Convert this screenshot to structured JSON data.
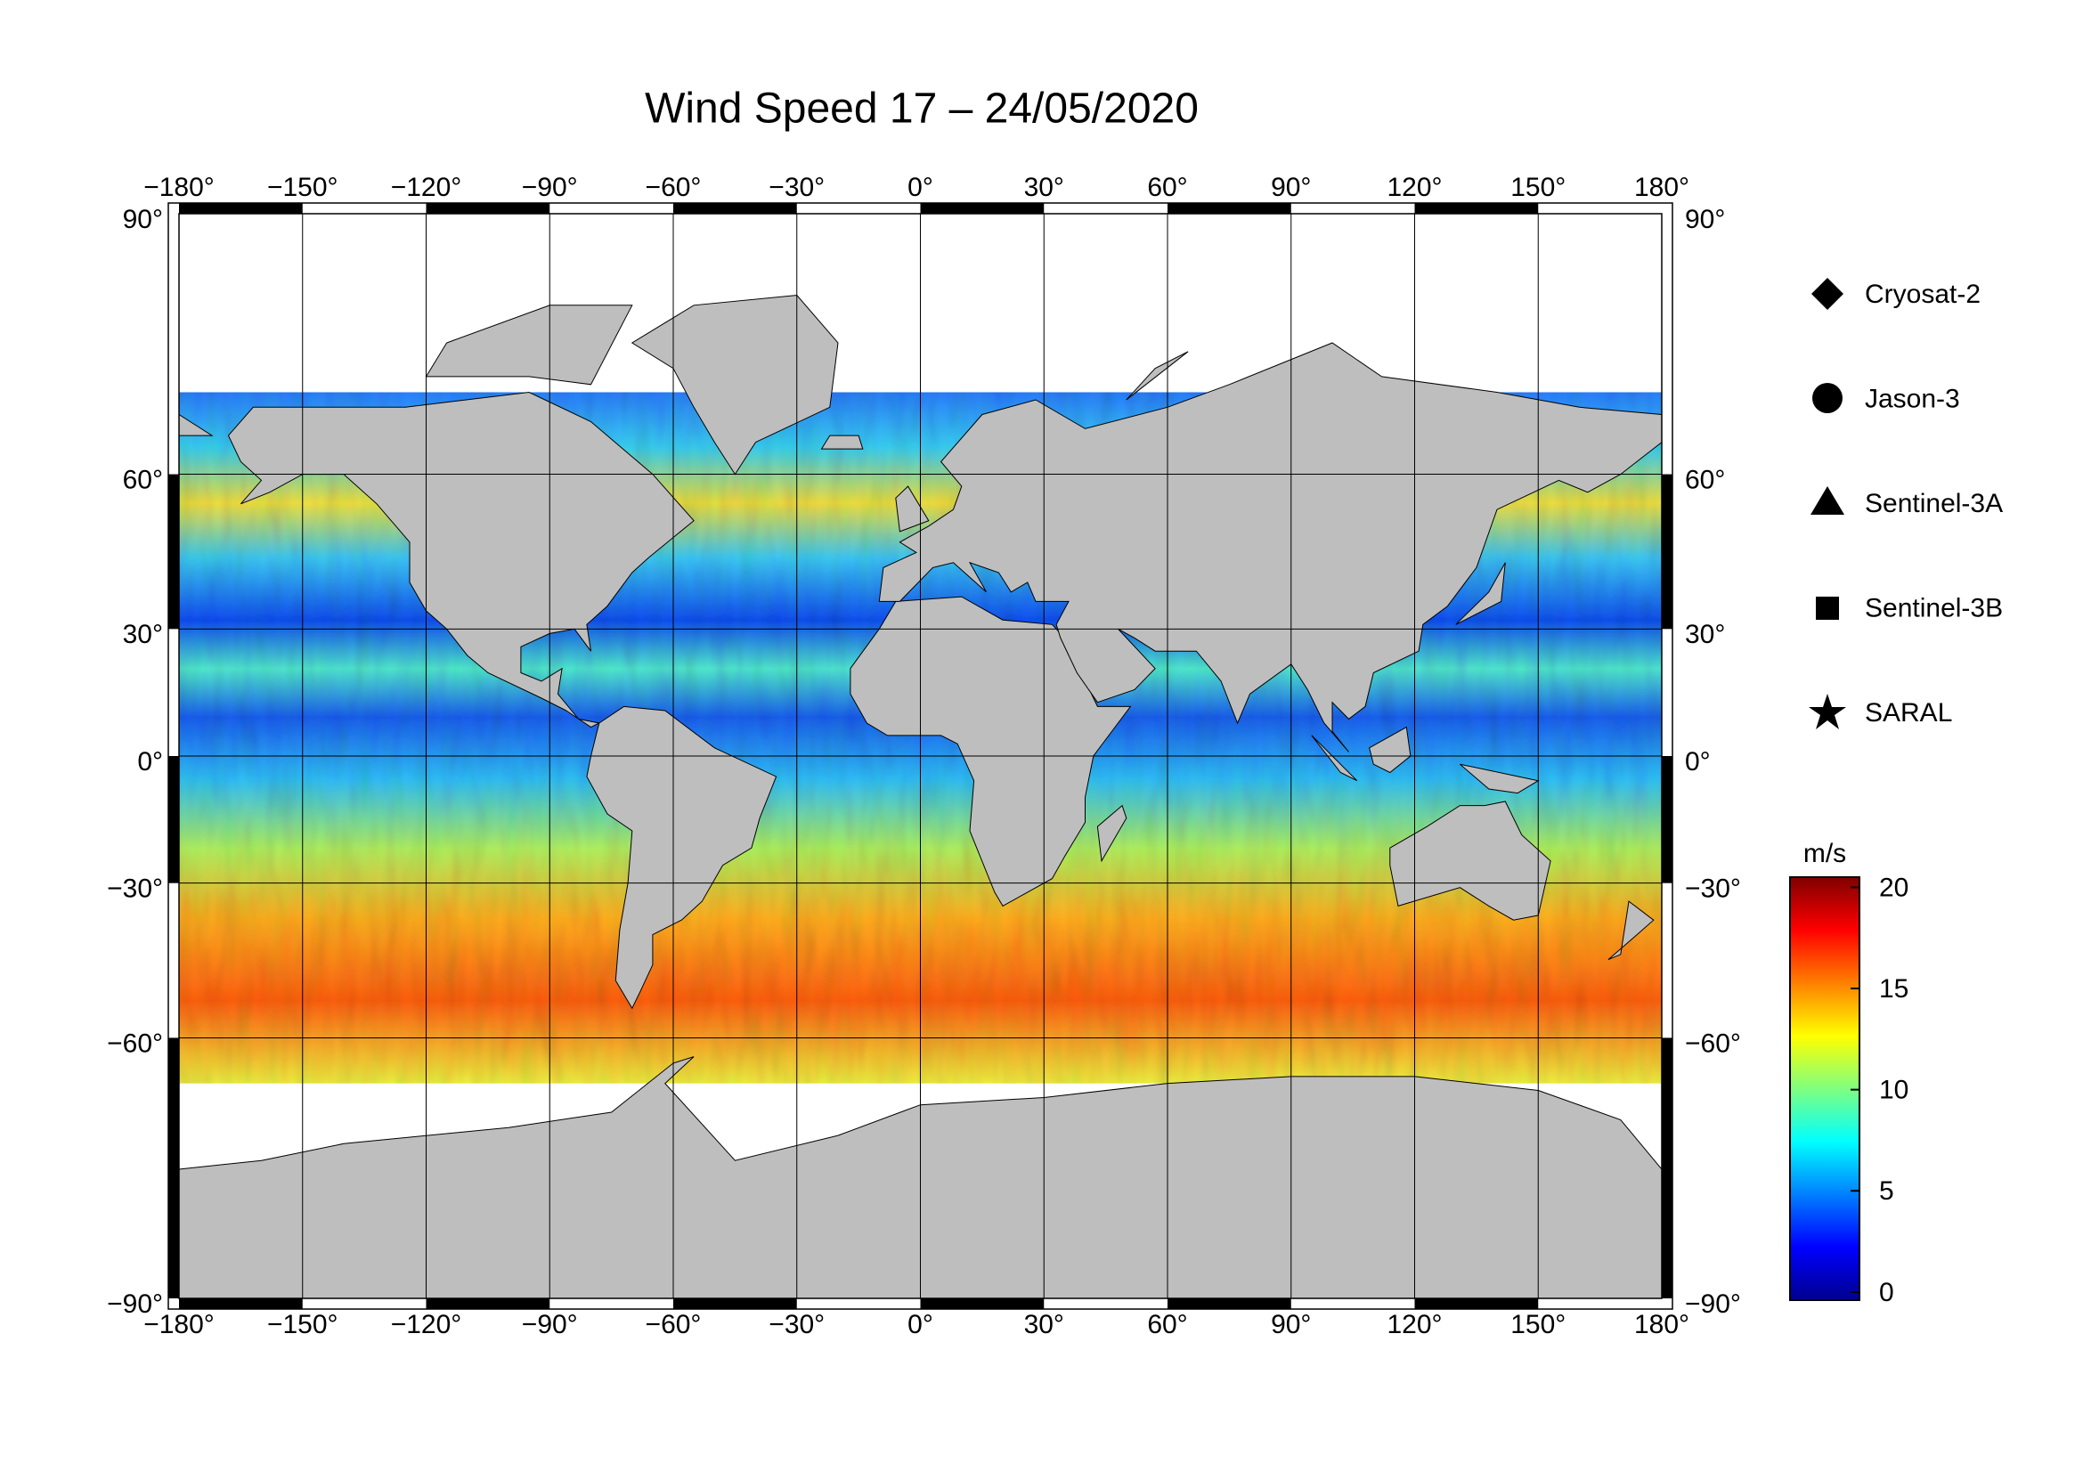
{
  "chart_data": {
    "type": "map",
    "title": "Wind Speed 17 – 24/05/2020",
    "xlim": [
      -180,
      180
    ],
    "ylim": [
      -90,
      90
    ],
    "xticks": [
      {
        "value": -180,
        "label": "−180°"
      },
      {
        "value": -150,
        "label": "−150°"
      },
      {
        "value": -120,
        "label": "−120°"
      },
      {
        "value": -90,
        "label": "−90°"
      },
      {
        "value": -60,
        "label": "−60°"
      },
      {
        "value": -30,
        "label": "−30°"
      },
      {
        "value": 0,
        "label": "0°"
      },
      {
        "value": 30,
        "label": "30°"
      },
      {
        "value": 60,
        "label": "60°"
      },
      {
        "value": 90,
        "label": "90°"
      },
      {
        "value": 120,
        "label": "120°"
      },
      {
        "value": 150,
        "label": "150°"
      },
      {
        "value": 180,
        "label": "180°"
      }
    ],
    "yticks": [
      {
        "value": -90,
        "label": "−90°"
      },
      {
        "value": -60,
        "label": "−60°"
      },
      {
        "value": -30,
        "label": "−30°"
      },
      {
        "value": 0,
        "label": "0°"
      },
      {
        "value": 30,
        "label": "30°"
      },
      {
        "value": 60,
        "label": "60°"
      },
      {
        "value": 90,
        "label": "90°"
      }
    ],
    "grid": true,
    "legend": [
      "Cryosat-2",
      "Jason-3",
      "Sentinel-3A",
      "Sentinel-3B",
      "SARAL"
    ],
    "colorbar": {
      "label": "m/s",
      "lim": [
        -0.4,
        20.5
      ],
      "ticks": [
        0,
        5,
        10,
        15,
        20
      ]
    }
  }
}
